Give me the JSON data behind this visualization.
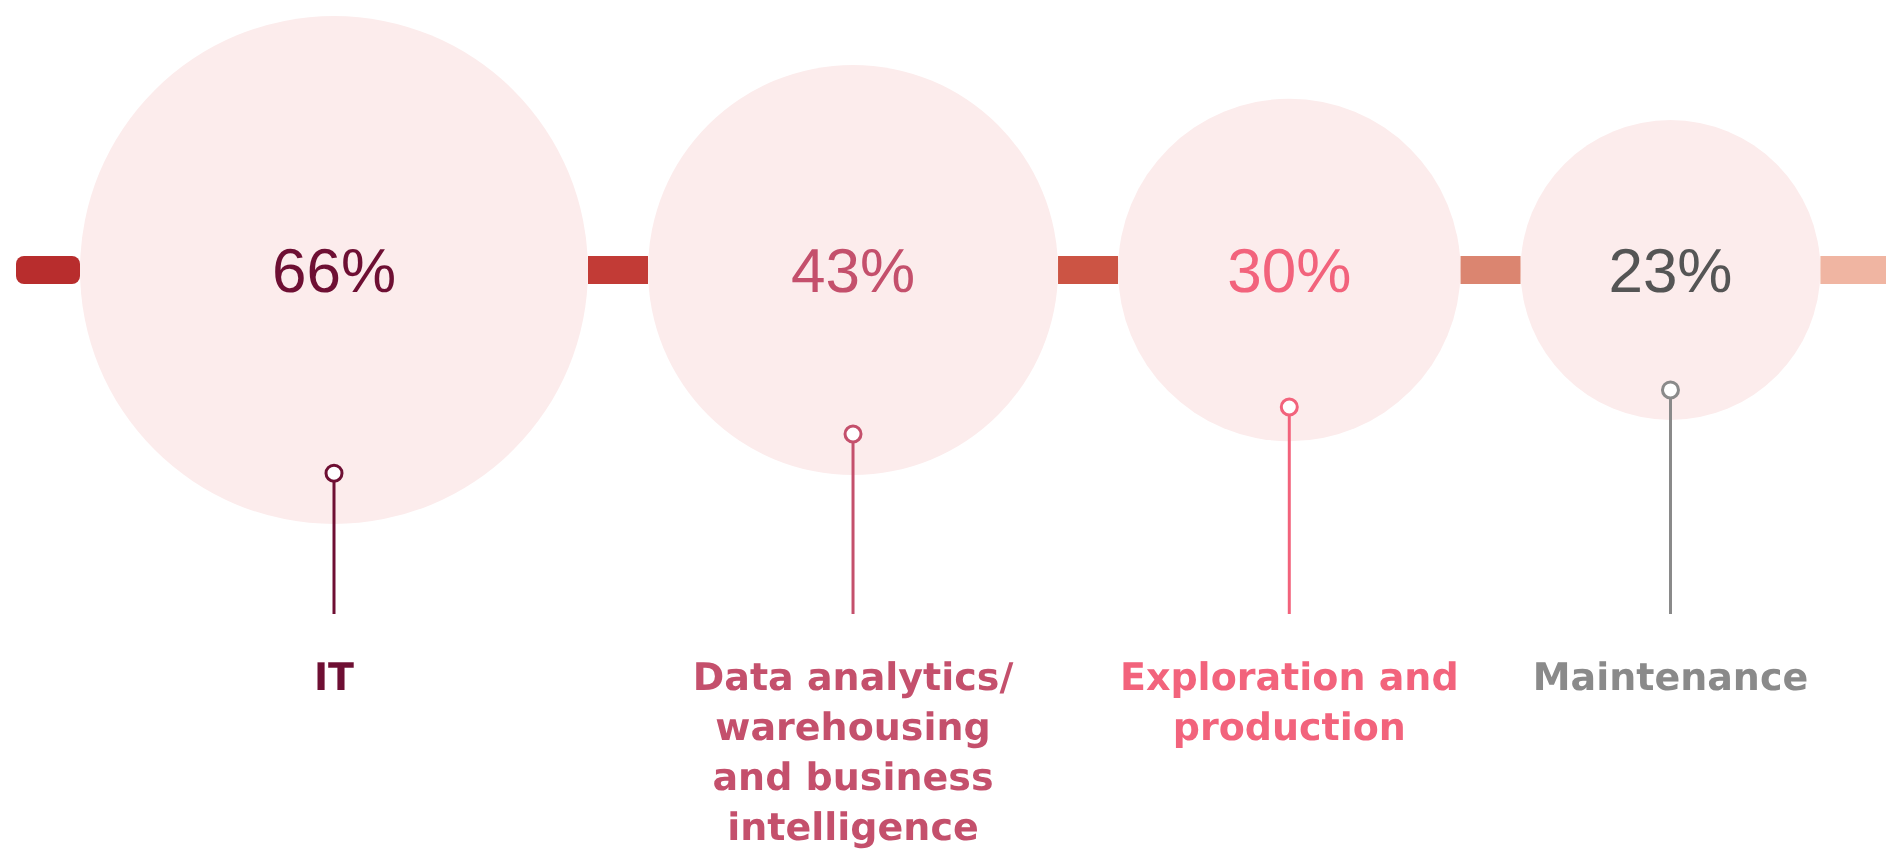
{
  "chart_data": {
    "type": "other",
    "categories": [
      "IT",
      "Data analytics/\nwarehousing\nand business\nintelligence",
      "Exploration and\nproduction",
      "Maintenance"
    ],
    "values": [
      66,
      43,
      30,
      23
    ],
    "value_labels": [
      "66%",
      "43%",
      "30%",
      "23%"
    ],
    "colors": [
      "#fcecec",
      "#fcecec",
      "#fcecec",
      "#fcecec"
    ]
  }
}
